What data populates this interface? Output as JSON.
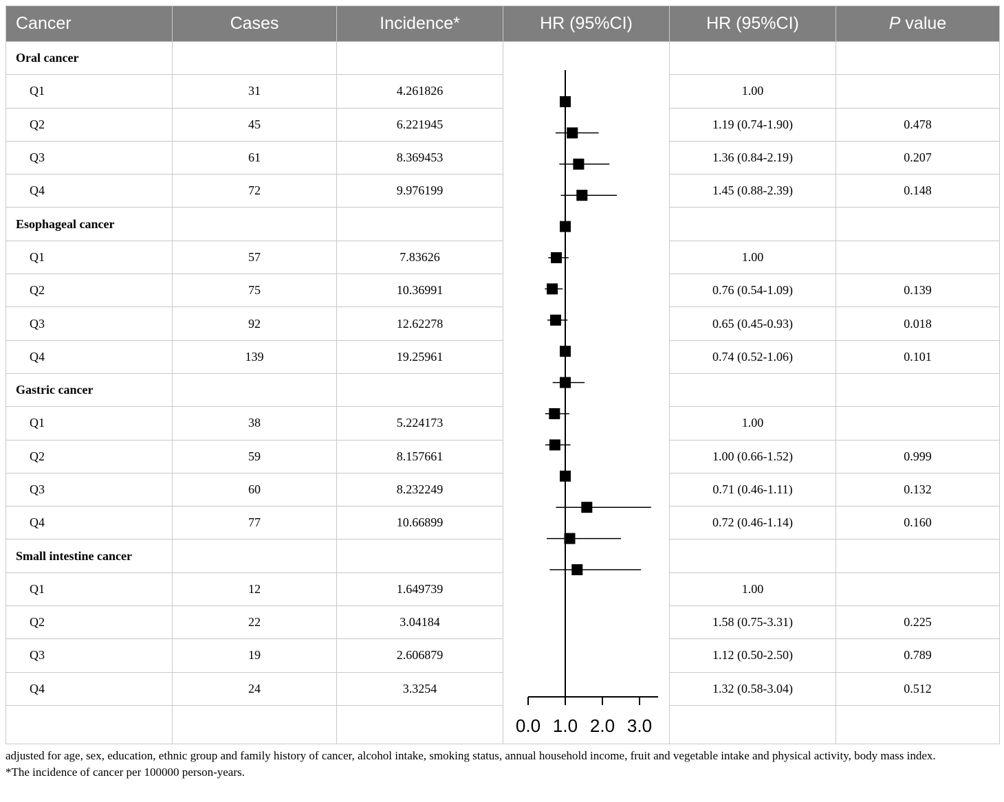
{
  "header": {
    "cancer": "Cancer",
    "cases": "Cases",
    "incidence": "Incidence*",
    "hr_plot": "HR (95%CI)",
    "hr_text": "HR (95%CI)",
    "p_italic": "P",
    "p_rest": " value"
  },
  "groups": [
    {
      "name": "Oral cancer",
      "rows": [
        {
          "q": "Q1",
          "cases": "31",
          "incidence": "4.261826",
          "hr": "1.00",
          "p": ""
        },
        {
          "q": "Q2",
          "cases": "45",
          "incidence": "6.221945",
          "hr": "1.19 (0.74-1.90)",
          "p": "0.478"
        },
        {
          "q": "Q3",
          "cases": "61",
          "incidence": "8.369453",
          "hr": "1.36 (0.84-2.19)",
          "p": "0.207"
        },
        {
          "q": "Q4",
          "cases": "72",
          "incidence": "9.976199",
          "hr": "1.45 (0.88-2.39)",
          "p": "0.148"
        }
      ]
    },
    {
      "name": "Esophageal cancer",
      "rows": [
        {
          "q": "Q1",
          "cases": "57",
          "incidence": "7.83626",
          "hr": "1.00",
          "p": ""
        },
        {
          "q": "Q2",
          "cases": "75",
          "incidence": "10.36991",
          "hr": "0.76 (0.54-1.09)",
          "p": "0.139"
        },
        {
          "q": "Q3",
          "cases": "92",
          "incidence": "12.62278",
          "hr": "0.65 (0.45-0.93)",
          "p": "0.018"
        },
        {
          "q": "Q4",
          "cases": "139",
          "incidence": "19.25961",
          "hr": "0.74 (0.52-1.06)",
          "p": "0.101"
        }
      ]
    },
    {
      "name": "Gastric cancer",
      "rows": [
        {
          "q": "Q1",
          "cases": "38",
          "incidence": "5.224173",
          "hr": "1.00",
          "p": ""
        },
        {
          "q": "Q2",
          "cases": "59",
          "incidence": "8.157661",
          "hr": "1.00 (0.66-1.52)",
          "p": "0.999"
        },
        {
          "q": "Q3",
          "cases": "60",
          "incidence": "8.232249",
          "hr": "0.71 (0.46-1.11)",
          "p": "0.132"
        },
        {
          "q": "Q4",
          "cases": "77",
          "incidence": "10.66899",
          "hr": "0.72 (0.46-1.14)",
          "p": "0.160"
        }
      ]
    },
    {
      "name": "Small intestine cancer",
      "rows": [
        {
          "q": "Q1",
          "cases": "12",
          "incidence": "1.649739",
          "hr": "1.00",
          "p": ""
        },
        {
          "q": "Q2",
          "cases": "22",
          "incidence": "3.04184",
          "hr": "1.58 (0.75-3.31)",
          "p": "0.225"
        },
        {
          "q": "Q3",
          "cases": "19",
          "incidence": "2.606879",
          "hr": "1.12 (0.50-2.50)",
          "p": "0.789"
        },
        {
          "q": "Q4",
          "cases": "24",
          "incidence": "3.3254",
          "hr": "1.32 (0.58-3.04)",
          "p": "0.512"
        }
      ]
    }
  ],
  "chart_data": {
    "type": "scatter",
    "subtype": "forest-plot",
    "xlim": [
      0.0,
      3.5
    ],
    "reference_line": 1.0,
    "xticks": [
      "0.0",
      "1.0",
      "2.0",
      "3.0"
    ],
    "xtick_values": [
      0,
      1,
      2,
      3
    ],
    "series": [
      {
        "points": [
          {
            "group": "Oral cancer",
            "label": "Q1",
            "hr": 1.0,
            "lower": 1.0,
            "upper": 1.0
          },
          {
            "group": "Oral cancer",
            "label": "Q2",
            "hr": 1.19,
            "lower": 0.74,
            "upper": 1.9
          },
          {
            "group": "Oral cancer",
            "label": "Q3",
            "hr": 1.36,
            "lower": 0.84,
            "upper": 2.19
          },
          {
            "group": "Oral cancer",
            "label": "Q4",
            "hr": 1.45,
            "lower": 0.88,
            "upper": 2.39
          },
          {
            "group": "Esophageal cancer",
            "label": "Q1",
            "hr": 1.0,
            "lower": 1.0,
            "upper": 1.0
          },
          {
            "group": "Esophageal cancer",
            "label": "Q2",
            "hr": 0.76,
            "lower": 0.54,
            "upper": 1.09
          },
          {
            "group": "Esophageal cancer",
            "label": "Q3",
            "hr": 0.65,
            "lower": 0.45,
            "upper": 0.93
          },
          {
            "group": "Esophageal cancer",
            "label": "Q4",
            "hr": 0.74,
            "lower": 0.52,
            "upper": 1.06
          },
          {
            "group": "Gastric cancer",
            "label": "Q1",
            "hr": 1.0,
            "lower": 1.0,
            "upper": 1.0
          },
          {
            "group": "Gastric cancer",
            "label": "Q2",
            "hr": 1.0,
            "lower": 0.66,
            "upper": 1.52
          },
          {
            "group": "Gastric cancer",
            "label": "Q3",
            "hr": 0.71,
            "lower": 0.46,
            "upper": 1.11
          },
          {
            "group": "Gastric cancer",
            "label": "Q4",
            "hr": 0.72,
            "lower": 0.46,
            "upper": 1.14
          },
          {
            "group": "Small intestine cancer",
            "label": "Q1",
            "hr": 1.0,
            "lower": 1.0,
            "upper": 1.0
          },
          {
            "group": "Small intestine cancer",
            "label": "Q2",
            "hr": 1.58,
            "lower": 0.75,
            "upper": 3.31
          },
          {
            "group": "Small intestine cancer",
            "label": "Q3",
            "hr": 1.12,
            "lower": 0.5,
            "upper": 2.5
          },
          {
            "group": "Small intestine cancer",
            "label": "Q4",
            "hr": 1.32,
            "lower": 0.58,
            "upper": 3.04
          }
        ]
      }
    ],
    "grid": false,
    "legend": "none"
  },
  "footnotes": [
    "adjusted for age, sex, education, ethnic group and family history of cancer, alcohol intake, smoking status, annual household income, fruit and vegetable intake and physical activity, body mass index.",
    "*The incidence of cancer per 100000 person-years."
  ]
}
